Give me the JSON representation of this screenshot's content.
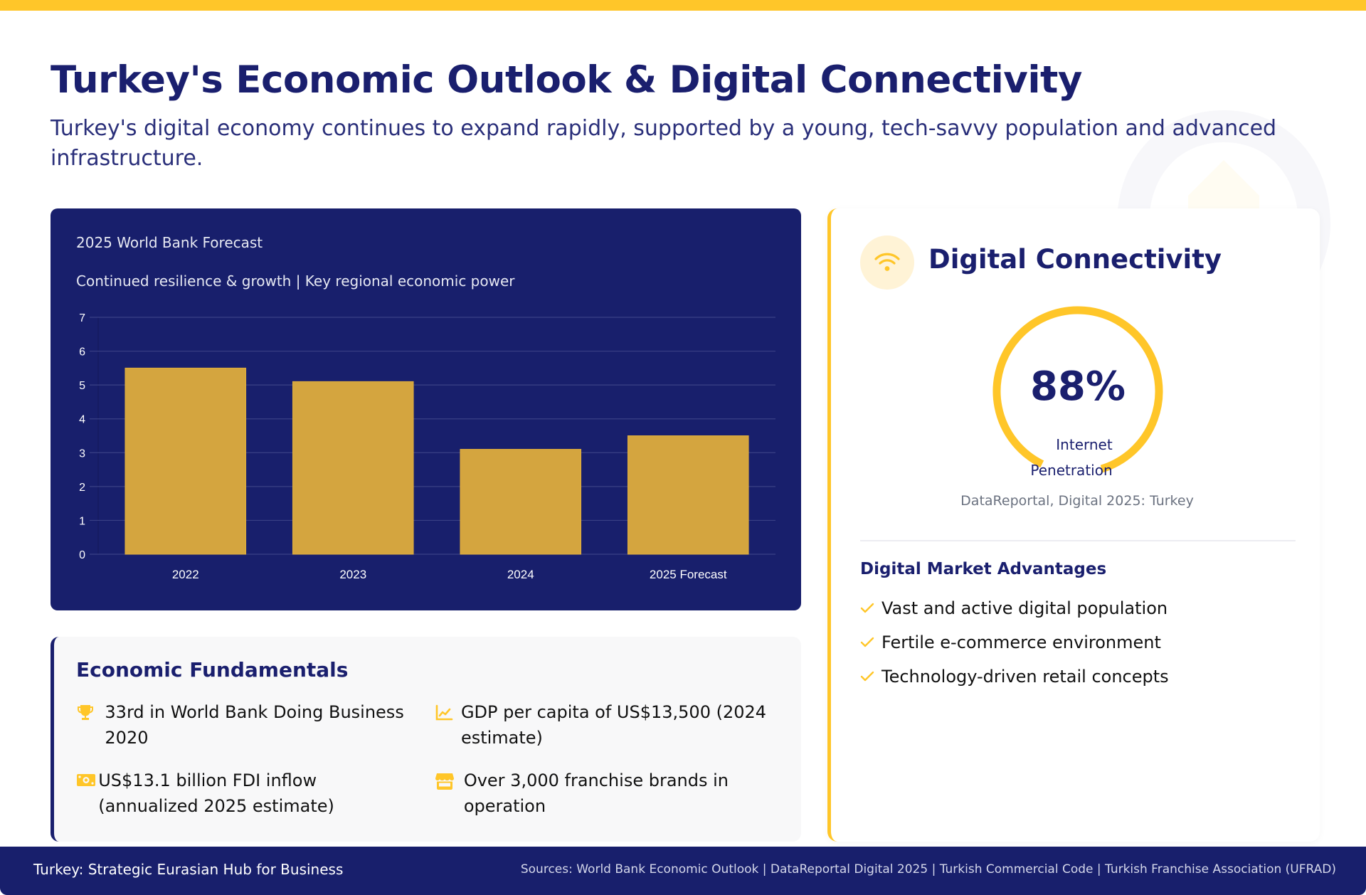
{
  "header": {
    "title": "Turkey's Economic Outlook & Digital Connectivity",
    "subtitle": "Turkey's digital economy continues to expand rapidly, supported by a young, tech-savvy population and advanced infrastructure."
  },
  "chart_card": {
    "title": "2025 World Bank Forecast",
    "subtitle": "Continued resilience & growth | Key regional economic power"
  },
  "chart_data": {
    "type": "bar",
    "title": "2025 World Bank Forecast",
    "subtitle": "Continued resilience & growth | Key regional economic power",
    "categories": [
      "2022",
      "2023",
      "2024",
      "2025 Forecast"
    ],
    "values": [
      5.5,
      5.1,
      3.1,
      3.5
    ],
    "xlabel": "",
    "ylabel": "",
    "ylim": [
      0,
      7
    ],
    "yticks": [
      0,
      1,
      2,
      3,
      4,
      5,
      6,
      7
    ],
    "grid": true,
    "legend": "none",
    "colors": {
      "bar": "#d4a53f",
      "background": "#181f6c",
      "grid": "#3a4085"
    }
  },
  "fundamentals": {
    "title": "Economic Fundamentals",
    "items": [
      {
        "icon": "trophy-icon",
        "text": "33rd in World Bank Doing Business 2020"
      },
      {
        "icon": "chart-line-icon",
        "text": "GDP per capita of US$13,500 (2024 estimate)"
      },
      {
        "icon": "money-bill-icon",
        "text": "US$13.1 billion FDI inflow (annualized 2025 estimate)"
      },
      {
        "icon": "store-icon",
        "text": "Over 3,000 franchise brands in operation"
      }
    ]
  },
  "connectivity": {
    "icon": "wifi-icon",
    "title": "Digital Connectivity",
    "gauge": {
      "value_text": "88%",
      "percent": 88,
      "label_line1": "Internet",
      "label_line2": "Penetration",
      "source": "DataReportal, Digital 2025: Turkey"
    },
    "advantages_title": "Digital Market Advantages",
    "advantages": [
      "Vast and active digital population",
      "Fertile e-commerce environment",
      "Technology-driven retail concepts"
    ]
  },
  "footer": {
    "left": "Turkey: Strategic Eurasian Hub for Business",
    "sources": "Sources: World Bank Economic Outlook | DataReportal Digital 2025 | Turkish Commercial Code | Turkish Franchise Association (UFRAD)"
  },
  "colors": {
    "navy": "#1a1f6e",
    "accent_yellow": "#ffc629",
    "bar_gold": "#d4a53f"
  }
}
